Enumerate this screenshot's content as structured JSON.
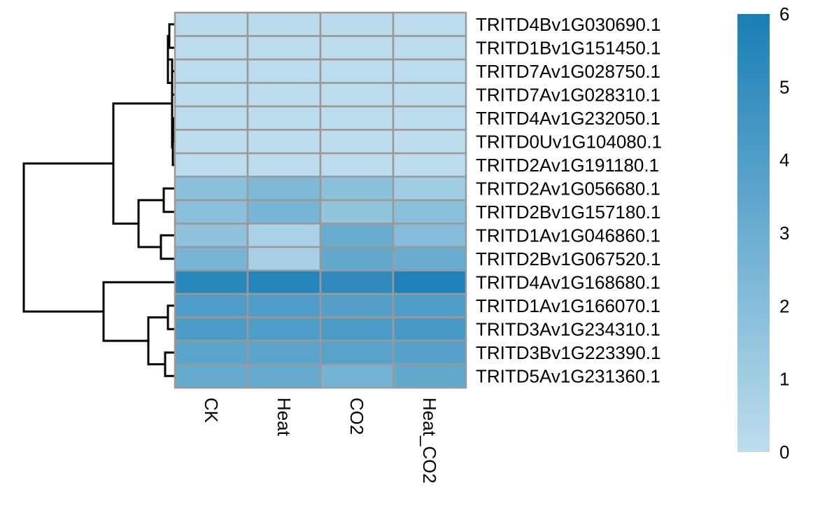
{
  "chart_data": {
    "type": "heatmap",
    "title": "",
    "xlabel": "",
    "ylabel": "",
    "columns": [
      "CK",
      "Heat",
      "CO2",
      "Heat_CO2"
    ],
    "rows": [
      "TRITD4Bv1G030690.1",
      "TRITD1Bv1G151450.1",
      "TRITD7Av1G028750.1",
      "TRITD7Av1G028310.1",
      "TRITD4Av1G232050.1",
      "TRITD0Uv1G104080.1",
      "TRITD2Av1G191180.1",
      "TRITD2Av1G056680.1",
      "TRITD2Bv1G157180.1",
      "TRITD1Av1G046860.1",
      "TRITD2Bv1G067520.1",
      "TRITD4Av1G168680.1",
      "TRITD1Av1G166070.1",
      "TRITD3Av1G234310.1",
      "TRITD3Bv1G223390.1",
      "TRITD5Av1G231360.1"
    ],
    "values": [
      [
        0.1,
        0.1,
        0.1,
        0.05
      ],
      [
        0.05,
        0.05,
        0.05,
        0.05
      ],
      [
        0.05,
        0.05,
        0.05,
        0.05
      ],
      [
        0.05,
        0.05,
        0.05,
        0.05
      ],
      [
        0.05,
        0.05,
        0.05,
        0.05
      ],
      [
        0.0,
        0.0,
        0.0,
        0.0
      ],
      [
        0.05,
        0.05,
        0.05,
        0.05
      ],
      [
        1.8,
        2.3,
        1.8,
        1.1
      ],
      [
        1.9,
        2.5,
        1.6,
        1.9
      ],
      [
        1.7,
        0.7,
        3.1,
        2.1
      ],
      [
        2.5,
        0.8,
        3.3,
        3.1
      ],
      [
        5.4,
        5.6,
        5.2,
        5.8
      ],
      [
        4.1,
        4.1,
        3.9,
        4.0
      ],
      [
        4.2,
        4.1,
        4.2,
        4.3
      ],
      [
        3.6,
        3.6,
        3.7,
        3.8
      ],
      [
        3.2,
        3.2,
        2.6,
        3.3
      ]
    ],
    "color_scale": {
      "min": 0,
      "max": 6,
      "low_color": "#bddded",
      "high_color": "#1a7eb5",
      "ticks": [
        0,
        1,
        2,
        3,
        4,
        5,
        6
      ]
    },
    "cell_border_color": "#999999",
    "row_dendrogram": true,
    "legend_position": "right"
  }
}
